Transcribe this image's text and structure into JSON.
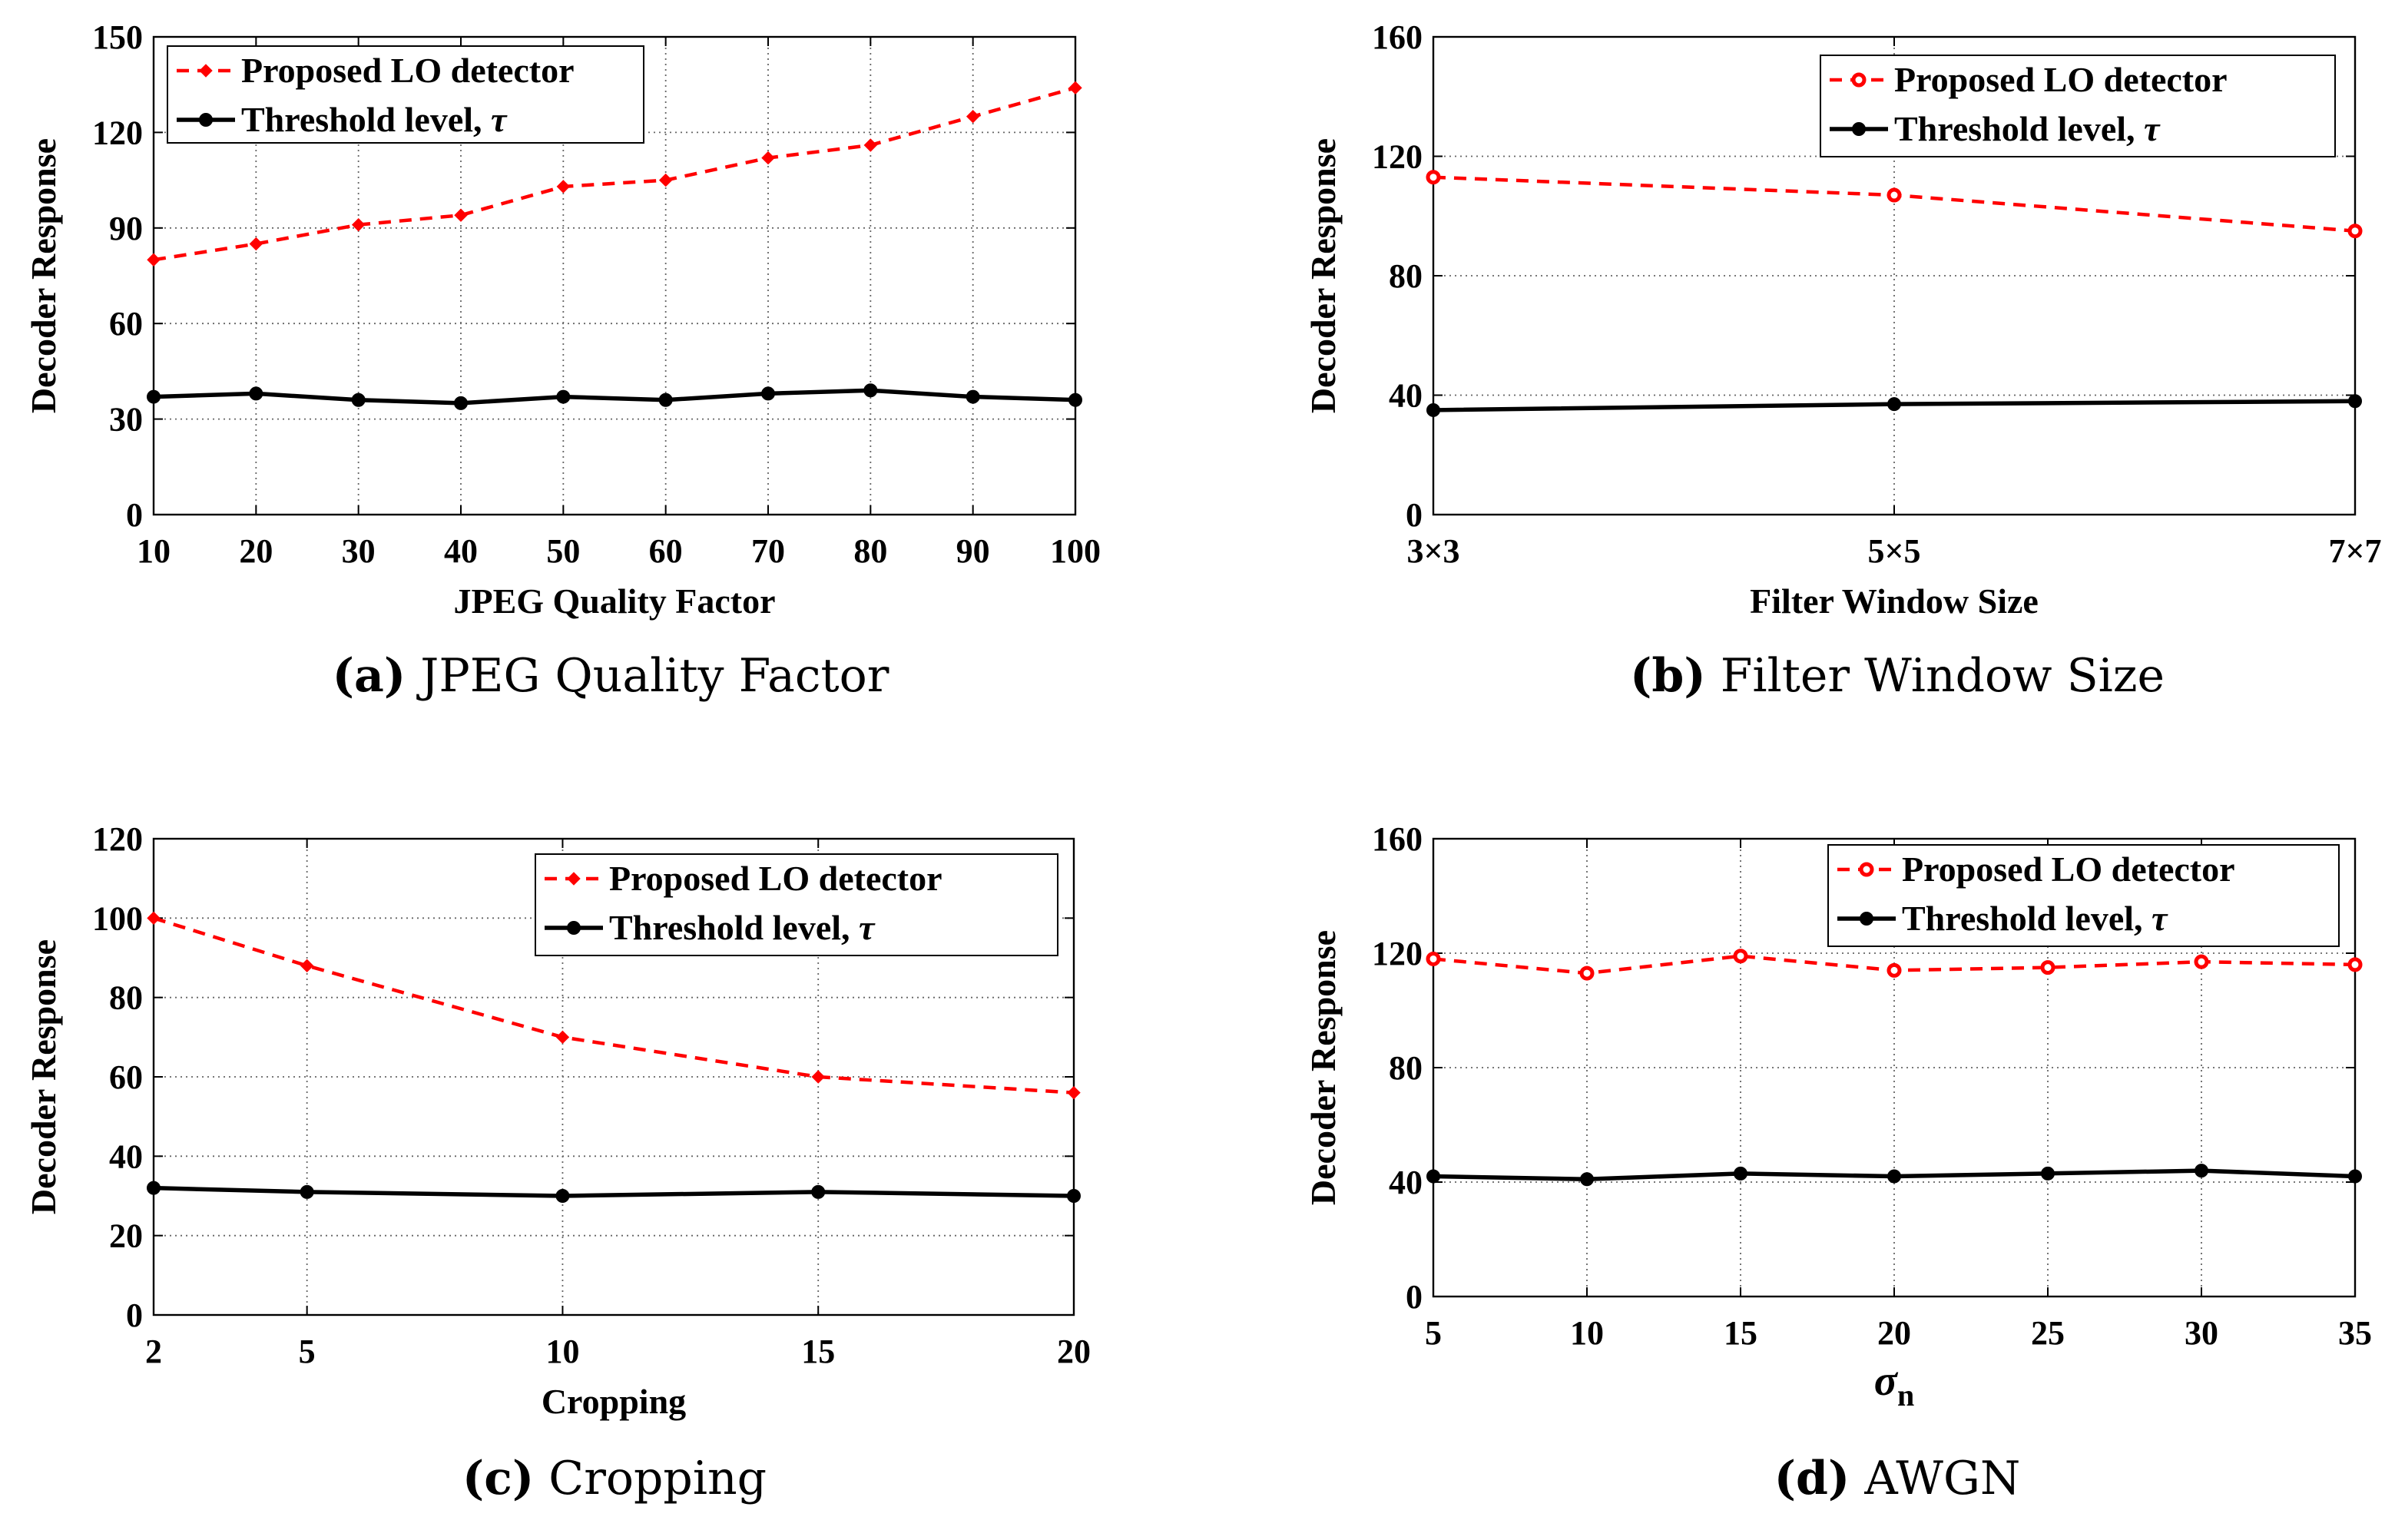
{
  "figure": {
    "colors": {
      "detector": "#ff0000",
      "threshold": "#000000",
      "grid": "#666666"
    },
    "chart_data": [
      {
        "id": "a",
        "type": "line",
        "caption_letter": "(a)",
        "caption_text": "JPEG Quality Factor",
        "xlabel": "JPEG Quality Factor",
        "ylabel": "Decoder Response",
        "x_numeric": [
          10,
          20,
          30,
          40,
          50,
          60,
          70,
          80,
          90,
          100
        ],
        "x_tick_labels": [
          "10",
          "20",
          "30",
          "40",
          "50",
          "60",
          "70",
          "80",
          "90",
          "100"
        ],
        "xlim": [
          10,
          100
        ],
        "y_ticks": [
          0,
          30,
          60,
          90,
          120,
          150
        ],
        "ylim": [
          0,
          150
        ],
        "legend_position": "top-left",
        "series": [
          {
            "name": "Proposed LO detector",
            "style": "dashed",
            "marker": "diamond",
            "values": [
              80,
              85,
              91,
              94,
              103,
              105,
              112,
              116,
              125,
              134
            ]
          },
          {
            "name": "Threshold level, τ",
            "style": "solid",
            "marker": "circle",
            "values": [
              37,
              38,
              36,
              35,
              37,
              36,
              38,
              39,
              37,
              36
            ]
          }
        ]
      },
      {
        "id": "b",
        "type": "line",
        "caption_letter": "(b)",
        "caption_text": "Filter Window Size",
        "xlabel": "Filter Window Size",
        "ylabel": "Decoder Response",
        "x_numeric": [
          3,
          5,
          7
        ],
        "x_tick_labels": [
          "3×3",
          "5×5",
          "7×7"
        ],
        "xlim": [
          3,
          7
        ],
        "y_ticks": [
          0,
          40,
          80,
          120,
          160
        ],
        "ylim": [
          0,
          160
        ],
        "legend_position": "top-right",
        "series": [
          {
            "name": "Proposed LO detector",
            "style": "dashed",
            "marker": "circle-open",
            "values": [
              113,
              107,
              95
            ]
          },
          {
            "name": "Threshold level, τ",
            "style": "solid",
            "marker": "circle",
            "values": [
              35,
              37,
              38
            ]
          }
        ]
      },
      {
        "id": "c",
        "type": "line",
        "caption_letter": "(c)",
        "caption_text": "Cropping",
        "xlabel": "Cropping",
        "ylabel": "Decoder Response",
        "x_numeric": [
          2,
          5,
          10,
          15,
          20
        ],
        "x_tick_labels": [
          "2",
          "5",
          "10",
          "15",
          "20"
        ],
        "xlim": [
          2,
          20
        ],
        "y_ticks": [
          0,
          20,
          40,
          60,
          80,
          100,
          120
        ],
        "ylim": [
          0,
          120
        ],
        "legend_position": "top-right",
        "series": [
          {
            "name": "Proposed LO detector",
            "style": "dashed",
            "marker": "diamond",
            "values": [
              100,
              88,
              70,
              60,
              56
            ]
          },
          {
            "name": "Threshold level, τ",
            "style": "solid",
            "marker": "circle",
            "values": [
              32,
              31,
              30,
              31,
              30
            ]
          }
        ]
      },
      {
        "id": "d",
        "type": "line",
        "caption_letter": "(d)",
        "caption_text": "AWGN",
        "xlabel": "σ",
        "xlabel_sub": "n",
        "ylabel": "Decoder Response",
        "x_numeric": [
          5,
          10,
          15,
          20,
          25,
          30,
          35
        ],
        "x_tick_labels": [
          "5",
          "10",
          "15",
          "20",
          "25",
          "30",
          "35"
        ],
        "xlim": [
          5,
          35
        ],
        "y_ticks": [
          0,
          40,
          80,
          120,
          160
        ],
        "ylim": [
          0,
          160
        ],
        "legend_position": "top-right",
        "series": [
          {
            "name": "Proposed LO detector",
            "style": "dashed",
            "marker": "circle-open",
            "values": [
              118,
              113,
              119,
              114,
              115,
              117,
              116
            ]
          },
          {
            "name": "Threshold level, τ",
            "style": "solid",
            "marker": "circle",
            "values": [
              42,
              41,
              43,
              42,
              43,
              44,
              42
            ]
          }
        ]
      }
    ]
  }
}
